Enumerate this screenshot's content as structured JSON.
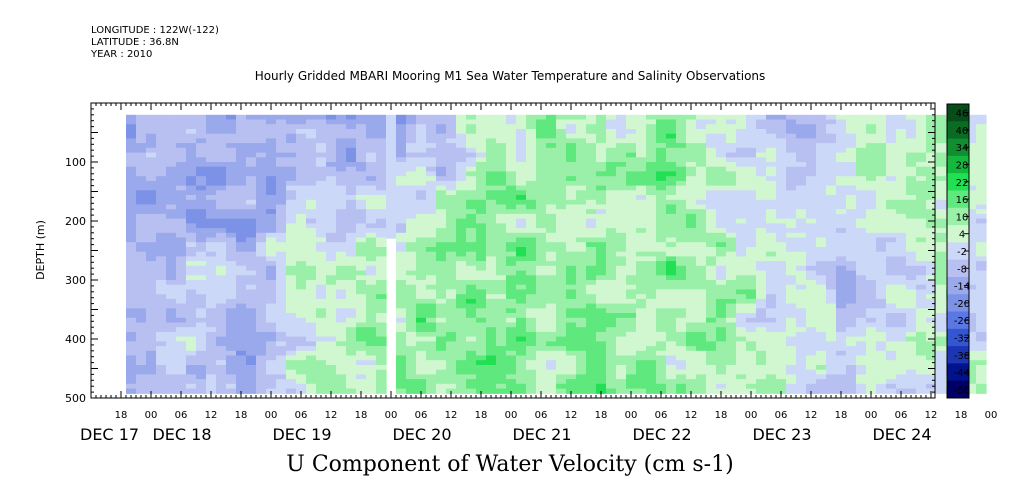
{
  "header": {
    "longitude": "LONGITUDE : 122W(-122)",
    "latitude": "LATITUDE : 36.8N",
    "year": "YEAR : 2010"
  },
  "chart_data": {
    "type": "heatmap",
    "title": "Hourly Gridded MBARI Mooring M1 Sea Water Temperature and Salinity Observations",
    "xlabel": "U Component of Water Velocity (cm s-1)",
    "ylabel": "DEPTH (m)",
    "ylim": [
      500,
      0
    ],
    "y_data_range": [
      20,
      485
    ],
    "y_ticks": [
      100,
      200,
      300,
      400,
      500
    ],
    "hour_tick_labels": [
      "18",
      "00",
      "06",
      "12",
      "18",
      "00",
      "06",
      "12",
      "18",
      "00",
      "06",
      "12",
      "18",
      "00",
      "06",
      "12",
      "18",
      "00",
      "06",
      "12",
      "18",
      "00",
      "06",
      "12",
      "18",
      "00",
      "06",
      "12",
      "18",
      "00",
      "06",
      "12"
    ],
    "day_labels": [
      "DEC 17",
      "DEC 18",
      "DEC 19",
      "DEC 20",
      "DEC 21",
      "DEC 22",
      "DEC 23",
      "DEC 24"
    ],
    "x_range_hours": [
      "2010-12-17 12:00",
      "2010-12-25 00:00"
    ],
    "data_gap": [
      "2010-12-19 23:00",
      "2010-12-20 01:00"
    ],
    "colorbar": {
      "levels": [
        -50,
        -44,
        -38,
        -32,
        -26,
        -20,
        -14,
        -8,
        -2,
        4,
        10,
        16,
        22,
        28,
        34,
        40,
        46
      ],
      "labels": [
        "46",
        "40",
        "34",
        "28",
        "22",
        "16",
        "10",
        "4",
        "-2",
        "-8",
        "-14",
        "-20",
        "-26",
        "-32",
        "-38",
        "-44",
        "-50"
      ],
      "colors": [
        "#000066",
        "#00128c",
        "#1c35b4",
        "#3556d2",
        "#5a77e2",
        "#7c92e6",
        "#9aa9ec",
        "#b8c0f2",
        "#ccd8f7",
        "#d0f7d0",
        "#9af0a8",
        "#5ee87d",
        "#22e054",
        "#14b83c",
        "#108f30",
        "#0b6b24",
        "#074d1a"
      ]
    },
    "profile_pattern": [
      {
        "date": "2010-12-17 18:00",
        "surface": -12,
        "deep": -8
      },
      {
        "date": "2010-12-18 06:00",
        "surface": -10,
        "deep": -4
      },
      {
        "date": "2010-12-18 18:00",
        "surface": -14,
        "deep": -6
      },
      {
        "date": "2010-12-19 06:00",
        "surface": -12,
        "deep": 8
      },
      {
        "date": "2010-12-19 18:00",
        "surface": -14,
        "deep": 12
      },
      {
        "date": "2010-12-20 06:00",
        "surface": -10,
        "deep": 14
      },
      {
        "date": "2010-12-20 18:00",
        "surface": 10,
        "deep": 16
      },
      {
        "date": "2010-12-21 06:00",
        "surface": 12,
        "deep": 12
      },
      {
        "date": "2010-12-21 18:00",
        "surface": 6,
        "deep": 14
      },
      {
        "date": "2010-12-22 06:00",
        "surface": 16,
        "deep": 14
      },
      {
        "date": "2010-12-22 18:00",
        "surface": 4,
        "deep": 10
      },
      {
        "date": "2010-12-23 06:00",
        "surface": -6,
        "deep": 6
      },
      {
        "date": "2010-12-23 18:00",
        "surface": 8,
        "deep": -4
      },
      {
        "date": "2010-12-24 12:00",
        "surface": 10,
        "deep": 4
      }
    ]
  }
}
